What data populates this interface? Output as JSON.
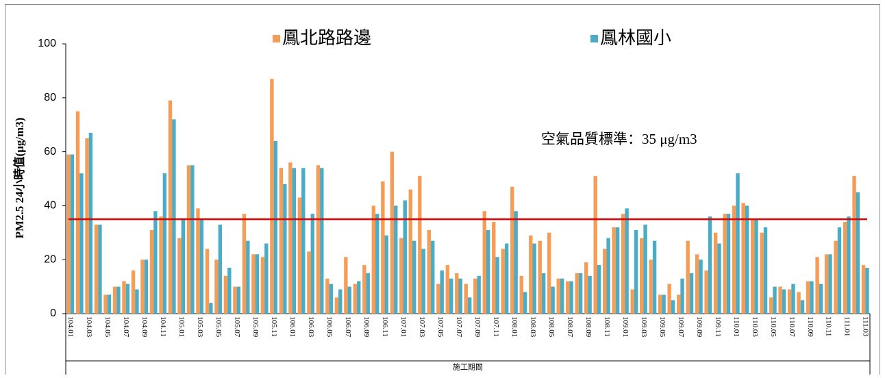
{
  "chart_data": {
    "type": "bar",
    "y_label": "PM2.5 24小時值(μg/m3)",
    "x_label": "施工期間",
    "categories": [
      "104.01",
      null,
      "104.03",
      null,
      "104.05",
      null,
      "104.07",
      null,
      "104.09",
      null,
      "104.11",
      null,
      "105.01",
      null,
      "105.03",
      null,
      "105.05",
      null,
      "105.07",
      null,
      "105.09",
      null,
      "105.11",
      null,
      "106.01",
      null,
      "106.03",
      null,
      "106.05",
      null,
      "106.07",
      null,
      "106.09",
      null,
      "106.11",
      null,
      "107.01",
      null,
      "107.03",
      null,
      "107.05",
      null,
      "107.07",
      null,
      "107.09",
      null,
      "107.11",
      null,
      "108.01",
      null,
      "108.03",
      null,
      "108.05",
      null,
      "108.07",
      null,
      "108.09",
      null,
      "108.11",
      null,
      "109.01",
      null,
      "109.03",
      null,
      "109.05",
      null,
      "109.07",
      null,
      "109.09",
      null,
      "109.11",
      null,
      "110.01",
      null,
      "110.03",
      null,
      "110.05",
      null,
      "110.07",
      null,
      "110.09",
      null,
      "110.11",
      null,
      "111.01",
      null,
      "111.03"
    ],
    "series": [
      {
        "name": "鳳北路路邊",
        "color": "#f59d56",
        "values": [
          59,
          75,
          65,
          33,
          7,
          10,
          12,
          16,
          20,
          31,
          36,
          79,
          28,
          55,
          39,
          24,
          20,
          14,
          10,
          37,
          22,
          21,
          87,
          54,
          56,
          43,
          23,
          55,
          13,
          6,
          21,
          11,
          18,
          40,
          49,
          60,
          28,
          46,
          51,
          31,
          11,
          18,
          15,
          11,
          13,
          38,
          34,
          24,
          47,
          14,
          29,
          27,
          30,
          13,
          12,
          15,
          19,
          51,
          24,
          32,
          37,
          9,
          28,
          20,
          7,
          11,
          7,
          27,
          22,
          16,
          30,
          37,
          40,
          41,
          35,
          30,
          6,
          10,
          9,
          8,
          12,
          21,
          22,
          27,
          34,
          51,
          18
        ]
      },
      {
        "name": "鳳林國小",
        "color": "#4bacc6",
        "values": [
          59,
          52,
          67,
          33,
          7,
          10,
          11,
          9,
          20,
          38,
          52,
          72,
          35,
          55,
          35,
          4,
          33,
          17,
          10,
          27,
          22,
          26,
          64,
          48,
          54,
          54,
          37,
          54,
          11,
          9,
          10,
          12,
          15,
          37,
          29,
          40,
          42,
          27,
          24,
          27,
          16,
          13,
          13,
          6,
          14,
          31,
          21,
          26,
          38,
          8,
          26,
          15,
          10,
          13,
          12,
          15,
          14,
          18,
          28,
          32,
          39,
          31,
          33,
          27,
          7,
          5,
          13,
          15,
          20,
          36,
          26,
          37,
          52,
          40,
          35,
          32,
          10,
          9,
          11,
          5,
          12,
          11,
          22,
          32,
          36,
          45,
          17
        ]
      }
    ],
    "reference_line": {
      "value": 35,
      "color": "#e00000",
      "label": "空氣品質標準：35 μg/m3"
    },
    "ylim": [
      0,
      100
    ],
    "yticks": [
      0,
      20,
      40,
      60,
      80,
      100
    ],
    "grid": false
  }
}
